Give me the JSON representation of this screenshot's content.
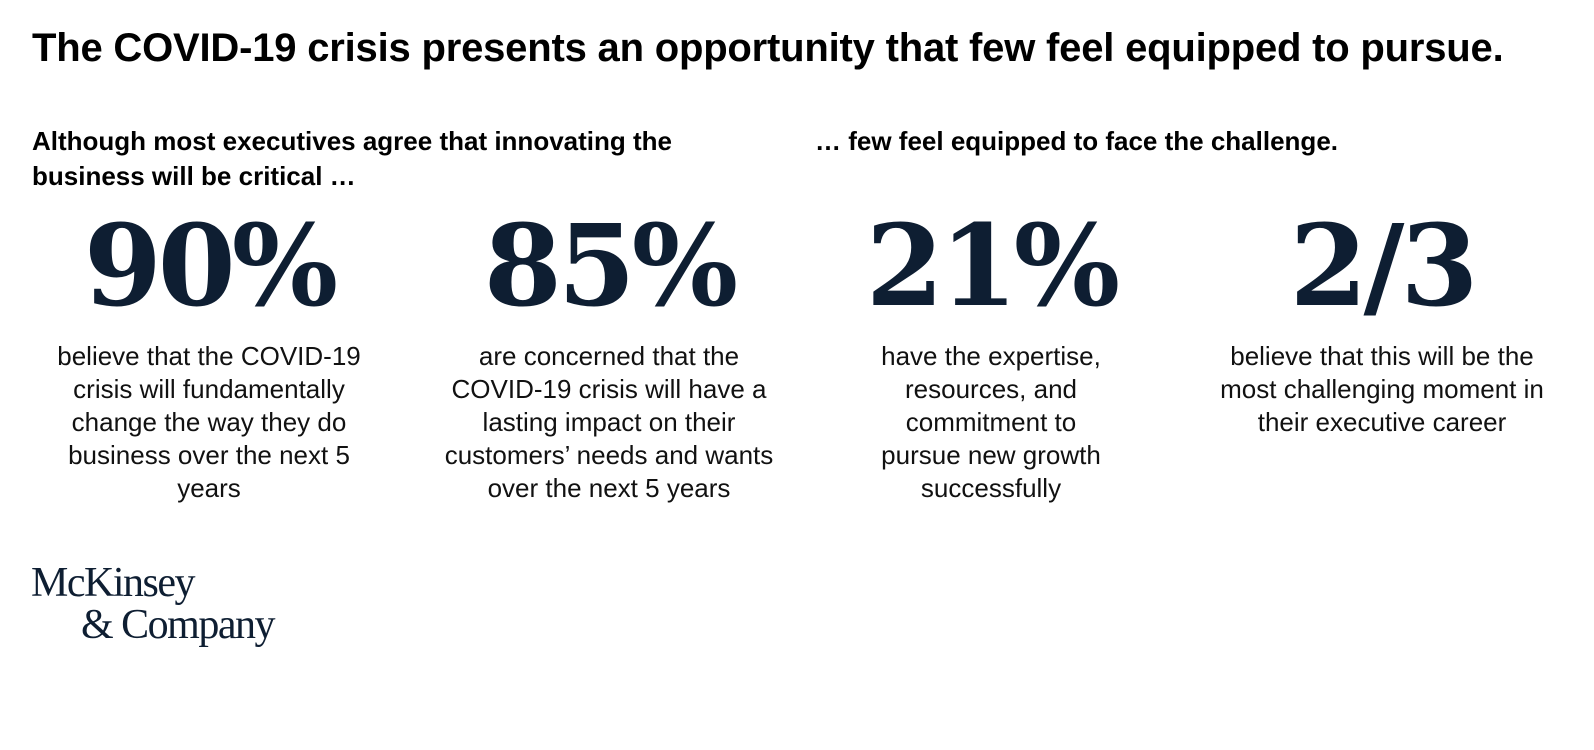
{
  "title": "The COVID-19 crisis presents an opportunity that few feel equipped to pursue.",
  "headings": {
    "left": "Although most executives agree that innovating the business will be critical …",
    "right": "… few feel equipped to face the challenge."
  },
  "stats": [
    {
      "value": "90%",
      "description": "believe that the COVID-19 crisis will fundamentally change the way they do business over the next 5 years"
    },
    {
      "value": "85%",
      "description": "are concerned that the COVID-19 crisis will have a lasting impact on their customers’ needs and wants over the next 5 years"
    },
    {
      "value": "21%",
      "description": "have the expertise, resources, and commitment to pursue new growth successfully"
    },
    {
      "value": "2/3",
      "description": "believe that this will be the most challenging moment in their executive career"
    }
  ],
  "logo": {
    "line1": "McKinsey",
    "line2": "& Company"
  },
  "colors": {
    "number": "#0e1e32",
    "text": "#000000",
    "background": "#ffffff"
  }
}
